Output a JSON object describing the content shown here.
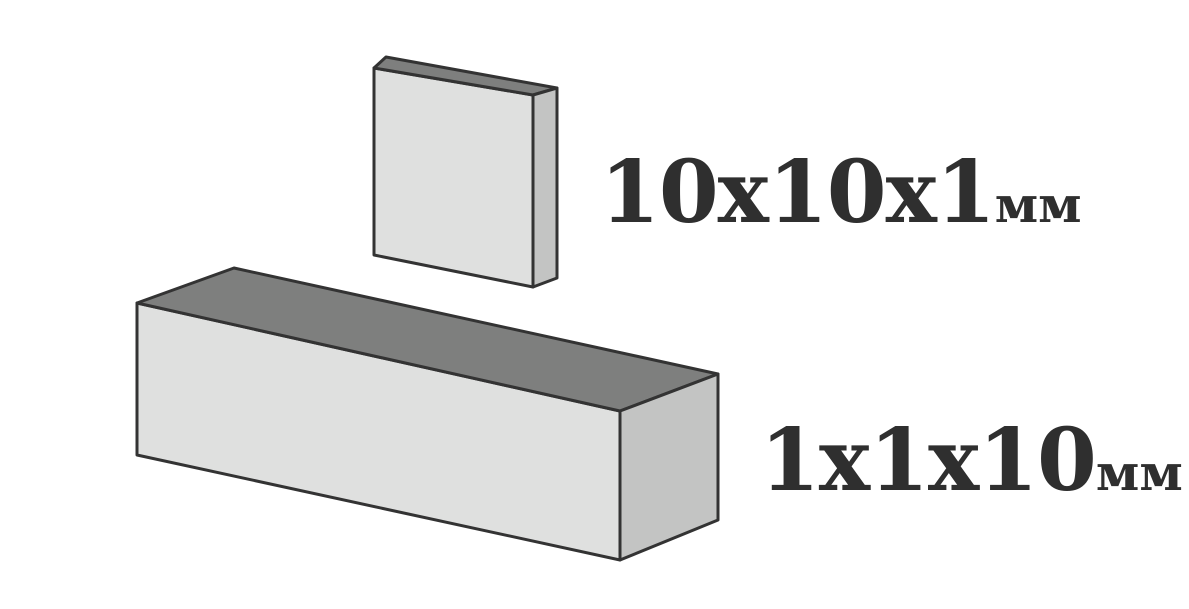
{
  "labels": {
    "plate": {
      "num": "10x10x1",
      "unit": "мм"
    },
    "bar": {
      "num": "1x1x10",
      "unit": "мм"
    }
  },
  "colors": {
    "front_face": "#dfe0df",
    "top_face": "#7e7f7e",
    "side_face": "#c3c4c3",
    "outline": "#333333",
    "text": "#2f2f2f"
  }
}
